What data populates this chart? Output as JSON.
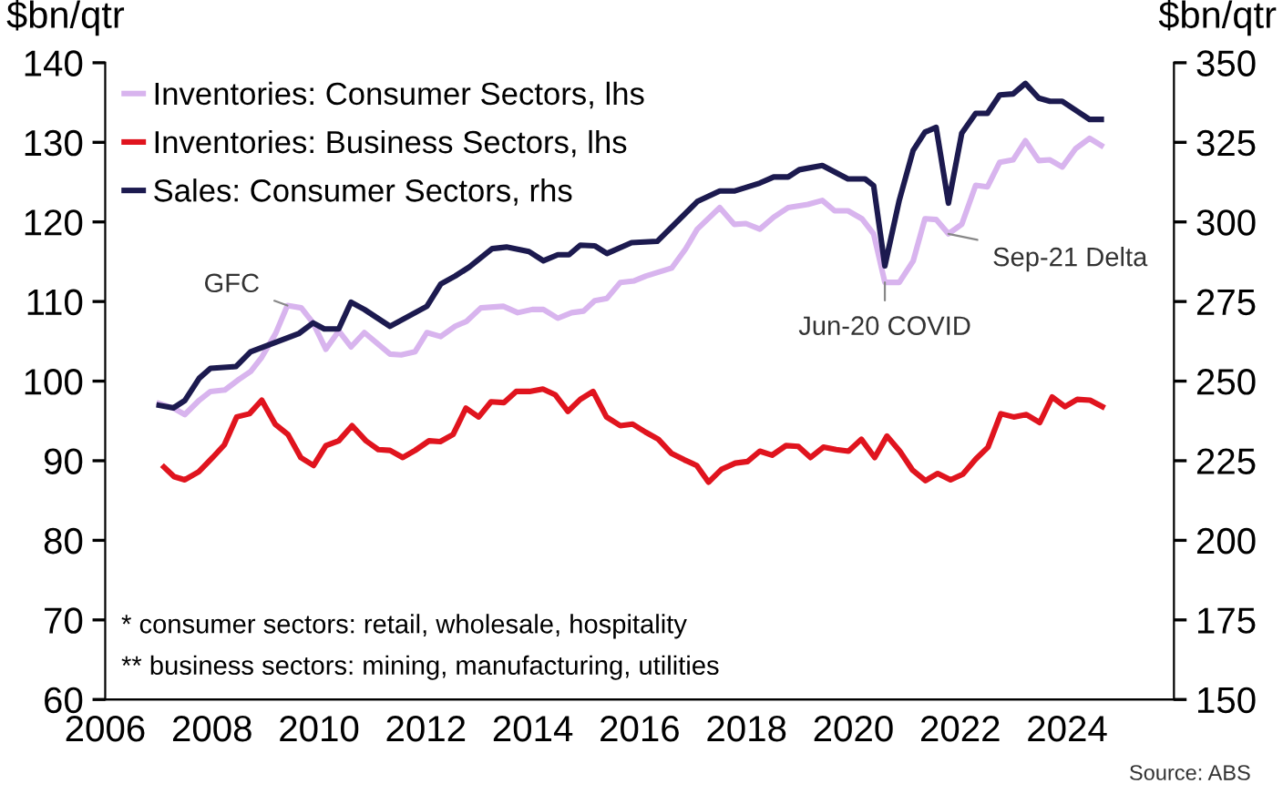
{
  "chart_data": {
    "type": "line",
    "ylabel": "$bn/qtr",
    "y2label": "$bn/qtr",
    "xlim": [
      2006,
      2026
    ],
    "xticks": [
      2006,
      2008,
      2010,
      2012,
      2014,
      2016,
      2018,
      2020,
      2022,
      2024
    ],
    "ylim": [
      60,
      140
    ],
    "yticks": [
      60,
      70,
      80,
      90,
      100,
      110,
      120,
      130,
      140
    ],
    "y2lim": [
      150,
      350
    ],
    "y2ticks": [
      150,
      175,
      200,
      225,
      250,
      275,
      300,
      325,
      350
    ],
    "grid": false,
    "legend": "top left",
    "marker": "none",
    "line_style": "solid",
    "series": [
      {
        "name": "Inventories: Consumer Sectors, lhs",
        "color": "#d8b4ee",
        "x": [
          2007.01,
          2007.28,
          2007.49,
          2007.76,
          2007.97,
          2008.24,
          2008.5,
          2008.72,
          2008.93,
          2009.19,
          2009.41,
          2009.67,
          2009.89,
          2010.13,
          2010.37,
          2010.6,
          2010.85,
          2011.33,
          2011.54,
          2011.8,
          2012.02,
          2012.28,
          2012.55,
          2012.76,
          2013.03,
          2013.45,
          2013.72,
          2013.99,
          2014.2,
          2014.47,
          2014.73,
          2014.95,
          2015.16,
          2015.39,
          2015.64,
          2015.9,
          2016.12,
          2016.6,
          2016.86,
          2017.08,
          2017.5,
          2017.77,
          2017.99,
          2018.25,
          2018.51,
          2018.78,
          2019.15,
          2019.42,
          2019.65,
          2019.9,
          2020.16,
          2020.38,
          2020.59,
          2020.86,
          2021.12,
          2021.34,
          2021.55,
          2021.78,
          2022.03,
          2022.29,
          2022.51,
          2022.74,
          2022.99,
          2023.22,
          2023.47,
          2023.68,
          2023.91,
          2024.16,
          2024.42,
          2024.64
        ],
        "values": [
          97.2,
          96.6,
          95.8,
          97.6,
          98.7,
          98.9,
          100.2,
          101.2,
          103,
          106,
          109.5,
          109.2,
          107.3,
          104,
          106.3,
          104.3,
          106.1,
          103.4,
          103.3,
          103.7,
          106.1,
          105.6,
          106.9,
          107.5,
          109.2,
          109.4,
          108.6,
          109,
          109,
          107.9,
          108.6,
          108.8,
          110.1,
          110.4,
          112.4,
          112.6,
          113.2,
          114.2,
          116.6,
          119.1,
          121.8,
          119.7,
          119.8,
          119.1,
          120.6,
          121.8,
          122.2,
          122.7,
          121.4,
          121.4,
          120.4,
          118.5,
          112.4,
          112.4,
          115.1,
          120.4,
          120.3,
          118.5,
          119.7,
          124.6,
          124.4,
          127.5,
          127.8,
          130.2,
          127.7,
          127.8,
          126.9,
          129.2,
          130.5,
          129.6
        ]
      },
      {
        "name": "Inventories: Business Sectors, lhs",
        "color": "#e0141e",
        "x": [
          2007.1,
          2007.29,
          2007.49,
          2007.75,
          2008.01,
          2008.23,
          2008.46,
          2008.7,
          2008.93,
          2009.18,
          2009.42,
          2009.66,
          2009.9,
          2010.13,
          2010.37,
          2010.62,
          2010.88,
          2011.11,
          2011.33,
          2011.57,
          2011.8,
          2012.06,
          2012.27,
          2012.51,
          2012.75,
          2012.99,
          2013.22,
          2013.46,
          2013.69,
          2013.94,
          2014.19,
          2014.42,
          2014.66,
          2014.89,
          2015.13,
          2015.38,
          2015.64,
          2015.87,
          2016.11,
          2016.35,
          2016.6,
          2016.84,
          2017.07,
          2017.29,
          2017.53,
          2017.79,
          2018.02,
          2018.25,
          2018.48,
          2018.74,
          2018.97,
          2019.2,
          2019.44,
          2019.68,
          2019.91,
          2020.15,
          2020.4,
          2020.63,
          2020.87,
          2021.11,
          2021.35,
          2021.58,
          2021.82,
          2022.05,
          2022.29,
          2022.52,
          2022.76,
          2023.0,
          2023.24,
          2023.49,
          2023.72,
          2023.96,
          2024.19,
          2024.43,
          2024.66
        ],
        "values": [
          89.2,
          88.0,
          87.6,
          88.6,
          90.4,
          92.0,
          95.5,
          95.9,
          97.6,
          94.6,
          93.3,
          90.4,
          89.4,
          91.9,
          92.5,
          94.4,
          92.5,
          91.4,
          91.3,
          90.4,
          91.3,
          92.5,
          92.4,
          93.3,
          96.6,
          95.5,
          97.4,
          97.3,
          98.7,
          98.7,
          99.0,
          98.3,
          96.2,
          97.7,
          98.7,
          95.5,
          94.4,
          94.6,
          93.6,
          92.7,
          90.9,
          90.1,
          89.4,
          87.3,
          88.9,
          89.7,
          89.9,
          91.2,
          90.7,
          91.9,
          91.8,
          90.4,
          91.7,
          91.4,
          91.2,
          92.7,
          90.4,
          93.1,
          91.2,
          88.8,
          87.5,
          88.4,
          87.6,
          88.3,
          90.2,
          91.7,
          95.9,
          95.5,
          95.8,
          94.8,
          98.0,
          96.8,
          97.7,
          97.6,
          96.8
        ]
      },
      {
        "name": "Sales: Consumer Sectors, rhs",
        "color": "#1c1a4f",
        "axis": "y2",
        "x": [
          2007.01,
          2007.28,
          2007.49,
          2007.76,
          2007.97,
          2008.45,
          2008.72,
          2009.62,
          2009.89,
          2010.1,
          2010.37,
          2010.6,
          2010.85,
          2011.33,
          2012.02,
          2012.28,
          2012.55,
          2012.81,
          2013.24,
          2013.51,
          2013.93,
          2014.2,
          2014.47,
          2014.68,
          2014.89,
          2015.16,
          2015.39,
          2015.85,
          2016.33,
          2016.65,
          2017.08,
          2017.5,
          2017.77,
          2018.25,
          2018.51,
          2018.78,
          2018.99,
          2019.42,
          2019.9,
          2020.22,
          2020.38,
          2020.59,
          2020.86,
          2021.12,
          2021.34,
          2021.55,
          2021.78,
          2022.03,
          2022.29,
          2022.51,
          2022.74,
          2022.99,
          2023.22,
          2023.47,
          2023.68,
          2023.91,
          2024.16,
          2024.42,
          2024.64
        ],
        "values": [
          242.4,
          241.6,
          243.9,
          250.9,
          254,
          254.6,
          259.2,
          264.9,
          268.3,
          266.4,
          266.4,
          274.8,
          272.5,
          267.2,
          273.5,
          280.5,
          283,
          285.8,
          291.6,
          292.1,
          290.7,
          287.8,
          289.7,
          289.7,
          292.7,
          292.5,
          290.1,
          293.5,
          293.9,
          299.2,
          306.4,
          309.7,
          309.7,
          312.2,
          314.1,
          314.1,
          316.4,
          317.7,
          313.5,
          313.5,
          311.4,
          286.2,
          306.8,
          322.5,
          328.2,
          329.7,
          305.9,
          327.9,
          334.1,
          334.1,
          339.9,
          340.2,
          343.5,
          338.9,
          337.9,
          337.9,
          335.1,
          332.2,
          332.2
        ]
      }
    ],
    "annotations": [
      {
        "text": "GFC",
        "x": 2009.41,
        "y": 109.5
      },
      {
        "text": "Jun-20 COVID",
        "x": 2020.59,
        "y": 112.4
      },
      {
        "text": "Sep-21 Delta",
        "x": 2021.78,
        "y": 118.5
      },
      "* consumer sectors: retail, wholesale, hospitality",
      "** business sectors: mining, manufacturing, utilities",
      "Source: ABS"
    ]
  }
}
